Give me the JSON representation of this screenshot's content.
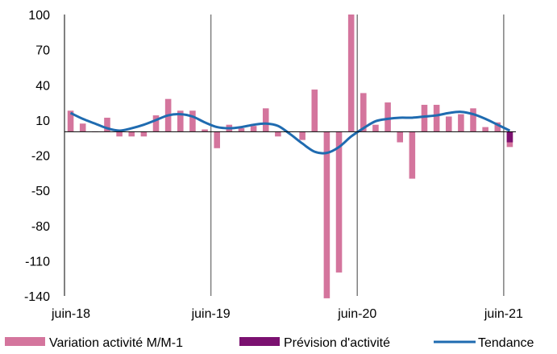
{
  "chart_data": {
    "type": "bar",
    "title": "",
    "xlabel": "",
    "ylabel": "",
    "ylim": [
      -140,
      100
    ],
    "yticks": [
      100,
      70,
      40,
      10,
      -20,
      -50,
      -80,
      -110,
      -140
    ],
    "x_tick_labels": [
      "juin-18",
      "juin-19",
      "juin-20",
      "juin-21"
    ],
    "x_tick_indices": [
      0,
      12,
      24,
      36
    ],
    "grid": "vertical",
    "legend_position": "bottom",
    "colors": {
      "variation": "#d4759d",
      "prevision": "#7b1170",
      "tendance": "#1f6bb0",
      "grid": "#808080",
      "axis": "#000000"
    },
    "series": [
      {
        "name": "Variation activité M/M-1",
        "kind": "bar",
        "values": [
          18,
          7,
          0,
          12,
          -4,
          -4,
          -4,
          14,
          28,
          18,
          18,
          2,
          -14,
          6,
          3,
          5,
          20,
          -4,
          0,
          -7,
          36,
          -142,
          -120,
          100,
          33,
          6,
          25,
          -9,
          -40,
          23,
          23,
          13,
          15,
          20,
          4,
          8,
          -13
        ]
      },
      {
        "name": "Prévision d'activité",
        "kind": "bar",
        "values": [
          null,
          null,
          null,
          null,
          null,
          null,
          null,
          null,
          null,
          null,
          null,
          null,
          null,
          null,
          null,
          null,
          null,
          null,
          null,
          null,
          null,
          null,
          null,
          null,
          null,
          null,
          null,
          null,
          null,
          null,
          null,
          null,
          null,
          null,
          null,
          null,
          -9
        ]
      },
      {
        "name": "Tendance",
        "kind": "line",
        "values": [
          16,
          11,
          7,
          3,
          1,
          3,
          6,
          10,
          14,
          15,
          13,
          8,
          4,
          3,
          4,
          6,
          7,
          5,
          -2,
          -10,
          -17,
          -18,
          -13,
          -4,
          3,
          9,
          11,
          12,
          12,
          13,
          14,
          16,
          17,
          15,
          11,
          6,
          1
        ]
      }
    ]
  }
}
